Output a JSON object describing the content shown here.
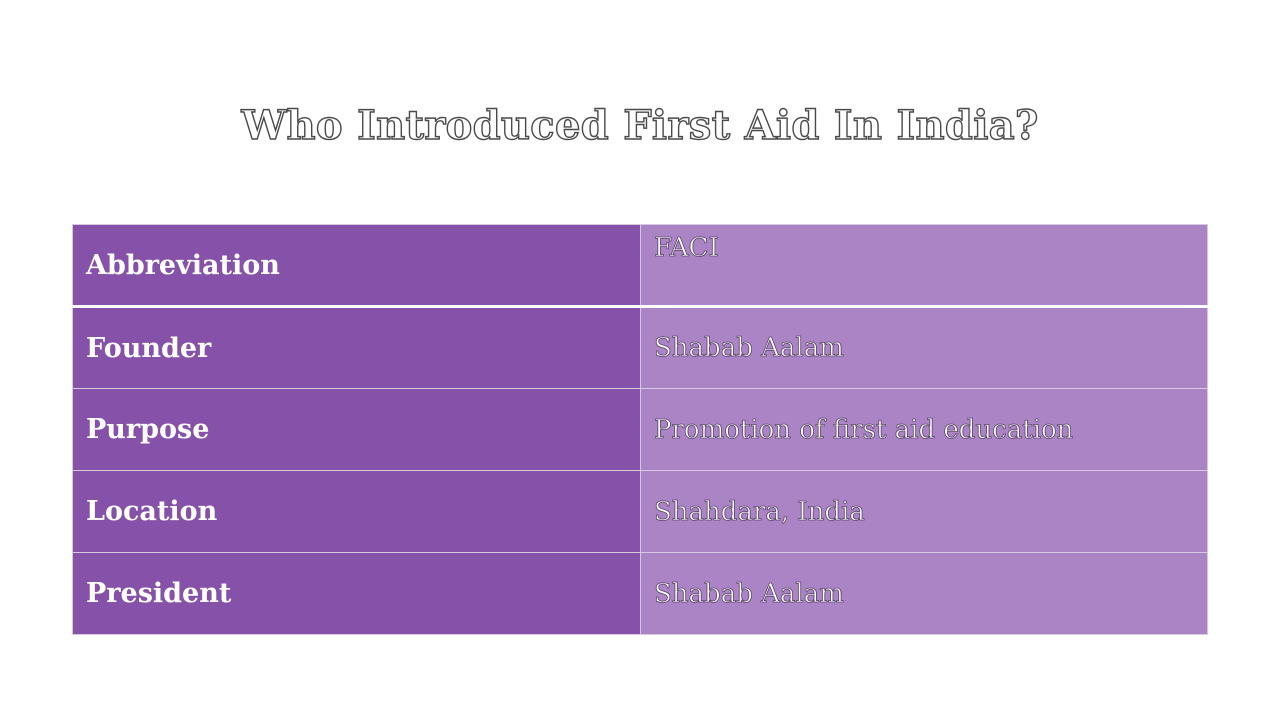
{
  "title": "Who Introduced First Aid In India?",
  "rows": [
    {
      "key": "Abbreviation",
      "value": "FACI"
    },
    {
      "key": "Founder",
      "value": "Shabab Aalam"
    },
    {
      "key": "Purpose",
      "value": "Promotion of first aid education"
    },
    {
      "key": "Location",
      "value": "Shahdara, India"
    },
    {
      "key": "President",
      "value": "Shabab Aalam"
    }
  ],
  "colors": {
    "key_cell": "#8651a8",
    "value_cell": "#aa84c5",
    "background": "#ffffff"
  }
}
